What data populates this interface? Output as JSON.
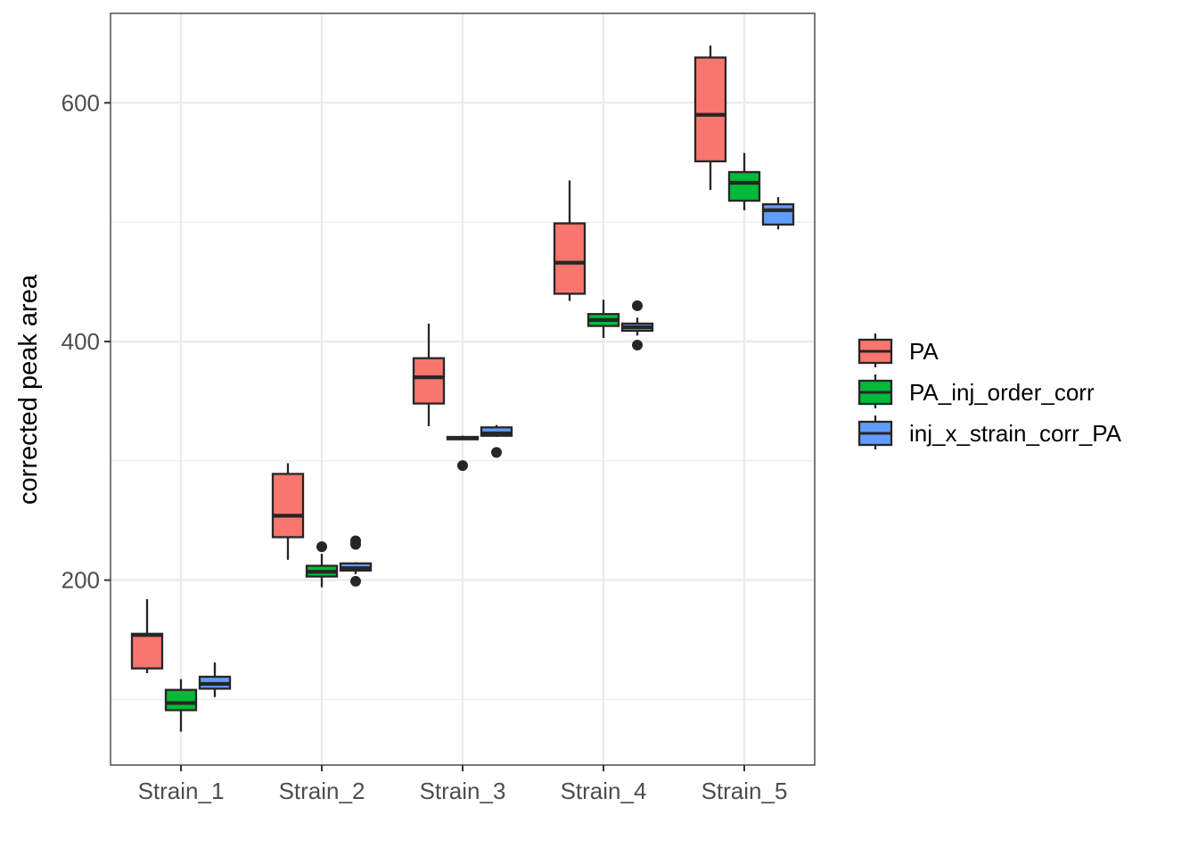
{
  "chart_data": {
    "type": "boxplot",
    "title": "",
    "xlabel": "",
    "ylabel": "corrected peak area",
    "ylim": [
      45,
      675
    ],
    "yticks": [
      200,
      400,
      600
    ],
    "grid": true,
    "legend_position": "right",
    "categories": [
      "Strain_1",
      "Strain_2",
      "Strain_3",
      "Strain_4",
      "Strain_5"
    ],
    "series": [
      {
        "name": "PA",
        "color": "#F8766D",
        "boxes": [
          {
            "q1": 126,
            "median": 154,
            "q3": 155,
            "whisker_low": 122,
            "whisker_high": 184,
            "outliers": []
          },
          {
            "q1": 236,
            "median": 254,
            "q3": 289,
            "whisker_low": 217,
            "whisker_high": 298,
            "outliers": []
          },
          {
            "q1": 348,
            "median": 370,
            "q3": 386,
            "whisker_low": 329,
            "whisker_high": 415,
            "outliers": []
          },
          {
            "q1": 440,
            "median": 466,
            "q3": 499,
            "whisker_low": 434,
            "whisker_high": 535,
            "outliers": []
          },
          {
            "q1": 551,
            "median": 590,
            "q3": 638,
            "whisker_low": 527,
            "whisker_high": 648,
            "outliers": []
          }
        ]
      },
      {
        "name": "PA_inj_order_corr",
        "color": "#00BA38",
        "boxes": [
          {
            "q1": 91,
            "median": 97,
            "q3": 108,
            "whisker_low": 73,
            "whisker_high": 117,
            "outliers": []
          },
          {
            "q1": 203,
            "median": 207,
            "q3": 212,
            "whisker_low": 194,
            "whisker_high": 222,
            "outliers": [
              228
            ]
          },
          {
            "q1": 318,
            "median": 319,
            "q3": 320,
            "whisker_low": 318,
            "whisker_high": 321,
            "outliers": [
              296
            ]
          },
          {
            "q1": 413,
            "median": 418,
            "q3": 423,
            "whisker_low": 403,
            "whisker_high": 435,
            "outliers": []
          },
          {
            "q1": 518,
            "median": 533,
            "q3": 542,
            "whisker_low": 510,
            "whisker_high": 558,
            "outliers": []
          }
        ]
      },
      {
        "name": "inj_x_strain_corr_PA",
        "color": "#619CFF",
        "boxes": [
          {
            "q1": 109,
            "median": 113,
            "q3": 119,
            "whisker_low": 102,
            "whisker_high": 131,
            "outliers": []
          },
          {
            "q1": 208,
            "median": 210,
            "q3": 214,
            "whisker_low": 205,
            "whisker_high": 215,
            "outliers": [
              199,
              230,
              233
            ]
          },
          {
            "q1": 321,
            "median": 323,
            "q3": 328,
            "whisker_low": 320,
            "whisker_high": 330,
            "outliers": [
              307
            ]
          },
          {
            "q1": 409,
            "median": 412,
            "q3": 415,
            "whisker_low": 405,
            "whisker_high": 420,
            "outliers": [
              397,
              430
            ]
          },
          {
            "q1": 498,
            "median": 510,
            "q3": 515,
            "whisker_low": 494,
            "whisker_high": 521,
            "outliers": []
          }
        ]
      }
    ]
  }
}
